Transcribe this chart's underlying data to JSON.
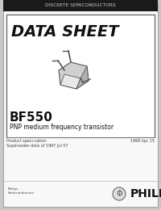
{
  "bg_color": "#ffffff",
  "border_color": "#000000",
  "header_bg": "#1a1a1a",
  "header_text": "DISCRETE SEMICONDUCTORS",
  "header_text_color": "#cccccc",
  "datasheet_title": "DATA SHEET",
  "part_number": "BF550",
  "description": "PNP medium frequency transistor",
  "spec_label": "Product speci­cation",
  "supersedes": "Supersedes data of 1997 Jul 07",
  "date": "1999 Apr 15",
  "philips_label": "Philips\nSemiconductors",
  "philips_text": "PHILIPS",
  "outer_bg": "#c8c8c8",
  "inner_bg": "#f5f5f5"
}
